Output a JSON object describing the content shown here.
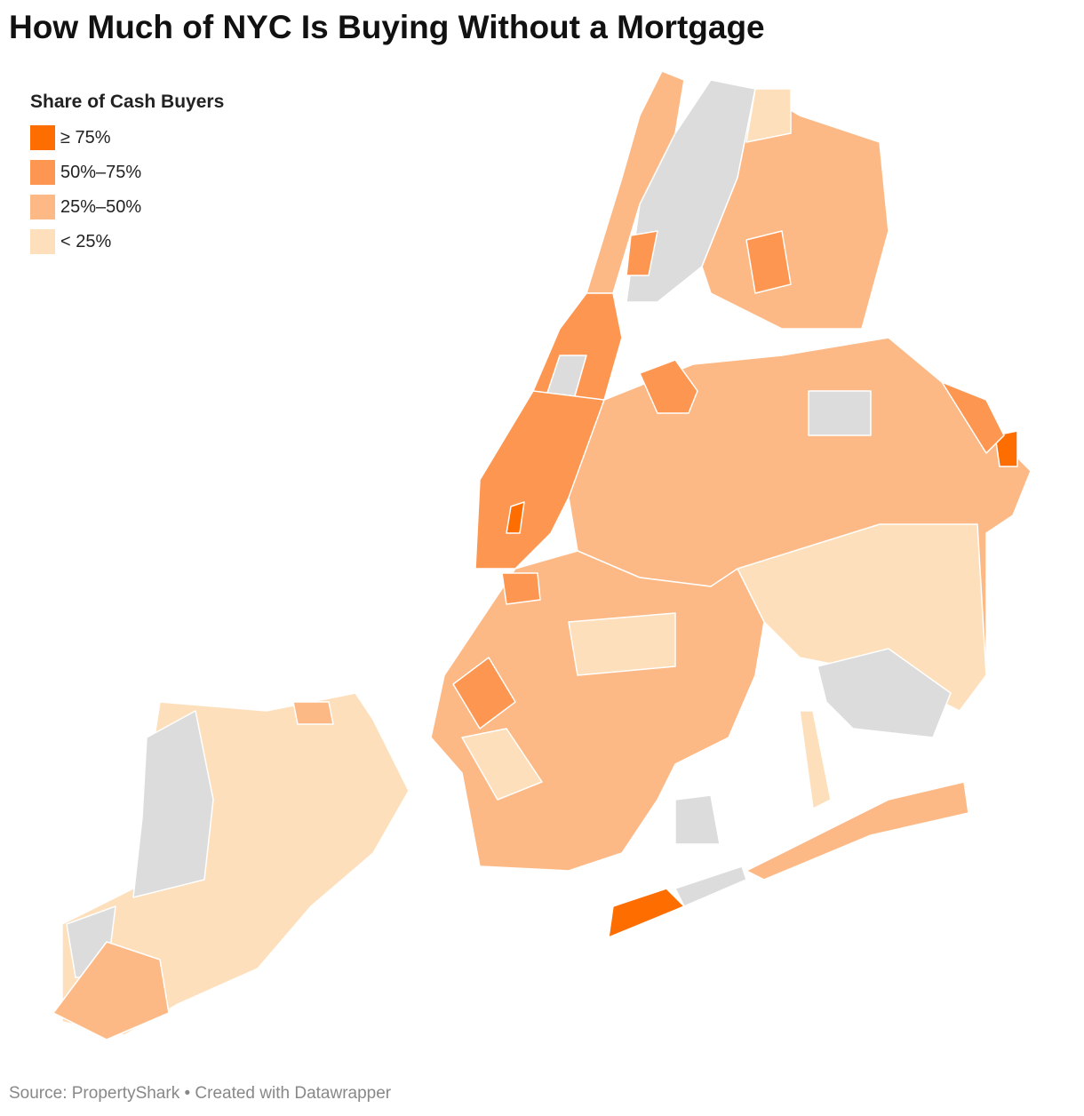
{
  "title": "How Much of NYC Is Buying Without a Mortgage",
  "legend": {
    "title": "Share of Cash Buyers",
    "items": [
      {
        "label": "≥ 75%",
        "color": "#fe6d00"
      },
      {
        "label": "50%–75%",
        "color": "#fd9650"
      },
      {
        "label": "25%–50%",
        "color": "#fdb985"
      },
      {
        "label": "< 25%",
        "color": "#fedfbb"
      }
    ]
  },
  "source": "Source: PropertyShark • Created with Datawrapper"
}
